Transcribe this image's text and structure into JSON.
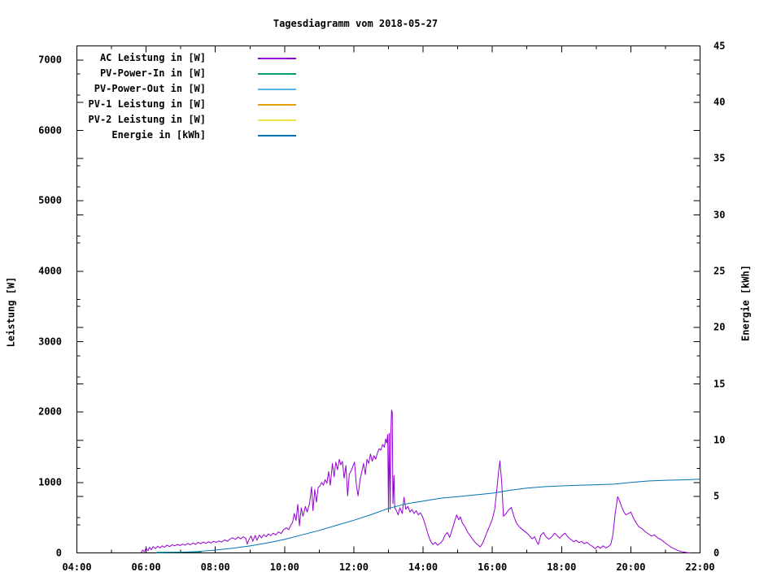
{
  "title": "Tagesdiagramm vom 2018-05-27",
  "axes": {
    "x": {
      "min": 4,
      "max": 22,
      "minor_step": 1,
      "ticks": [
        {
          "h": 4,
          "label": "04:00"
        },
        {
          "h": 6,
          "label": "06:00"
        },
        {
          "h": 8,
          "label": "08:00"
        },
        {
          "h": 10,
          "label": "10:00"
        },
        {
          "h": 12,
          "label": "12:00"
        },
        {
          "h": 14,
          "label": "14:00"
        },
        {
          "h": 16,
          "label": "16:00"
        },
        {
          "h": 18,
          "label": "18:00"
        },
        {
          "h": 20,
          "label": "20:00"
        },
        {
          "h": 22,
          "label": "22:00"
        }
      ]
    },
    "y_left": {
      "label": "Leistung [W]",
      "min": 0,
      "max": 7200,
      "minor_step": 500,
      "ticks": [
        0,
        1000,
        2000,
        3000,
        4000,
        5000,
        6000,
        7000
      ]
    },
    "y_right": {
      "label": "Energie [kWh]",
      "min": 0,
      "max": 45,
      "minor_step": 2.5,
      "ticks": [
        0,
        5,
        10,
        15,
        20,
        25,
        30,
        35,
        40,
        45
      ]
    }
  },
  "chart_data": {
    "type": "line",
    "title": "Tagesdiagramm vom 2018-05-27",
    "x_unit": "hour-of-day",
    "x_range": [
      4,
      22
    ],
    "y_left_label": "Leistung [W]",
    "y_left_range": [
      0,
      7200
    ],
    "y_right_label": "Energie [kWh]",
    "y_right_range": [
      0,
      45
    ],
    "grid": false,
    "legend_position": "top-left-inside",
    "series": [
      {
        "name": "AC Leistung in [W]",
        "color": "#9400d3",
        "axis": "left",
        "points": [
          [
            5.85,
            0
          ],
          [
            5.9,
            40
          ],
          [
            5.95,
            15
          ],
          [
            6.0,
            70
          ],
          [
            6.05,
            30
          ],
          [
            6.1,
            80
          ],
          [
            6.15,
            45
          ],
          [
            6.2,
            90
          ],
          [
            6.27,
            60
          ],
          [
            6.33,
            95
          ],
          [
            6.4,
            70
          ],
          [
            6.47,
            100
          ],
          [
            6.53,
            80
          ],
          [
            6.6,
            110
          ],
          [
            6.68,
            90
          ],
          [
            6.75,
            115
          ],
          [
            6.83,
            100
          ],
          [
            6.9,
            120
          ],
          [
            6.98,
            105
          ],
          [
            7.05,
            125
          ],
          [
            7.13,
            110
          ],
          [
            7.2,
            135
          ],
          [
            7.28,
            115
          ],
          [
            7.35,
            140
          ],
          [
            7.43,
            120
          ],
          [
            7.5,
            150
          ],
          [
            7.58,
            130
          ],
          [
            7.65,
            155
          ],
          [
            7.73,
            135
          ],
          [
            7.8,
            160
          ],
          [
            7.88,
            140
          ],
          [
            7.95,
            165
          ],
          [
            8.03,
            150
          ],
          [
            8.1,
            170
          ],
          [
            8.18,
            155
          ],
          [
            8.27,
            185
          ],
          [
            8.35,
            165
          ],
          [
            8.43,
            200
          ],
          [
            8.5,
            215
          ],
          [
            8.58,
            190
          ],
          [
            8.65,
            225
          ],
          [
            8.73,
            200
          ],
          [
            8.8,
            230
          ],
          [
            8.88,
            205
          ],
          [
            8.92,
            125
          ],
          [
            8.97,
            190
          ],
          [
            9.03,
            240
          ],
          [
            9.08,
            165
          ],
          [
            9.15,
            250
          ],
          [
            9.2,
            180
          ],
          [
            9.27,
            255
          ],
          [
            9.33,
            215
          ],
          [
            9.4,
            260
          ],
          [
            9.47,
            230
          ],
          [
            9.53,
            270
          ],
          [
            9.6,
            245
          ],
          [
            9.67,
            280
          ],
          [
            9.75,
            255
          ],
          [
            9.82,
            300
          ],
          [
            9.9,
            275
          ],
          [
            9.97,
            330
          ],
          [
            10.05,
            355
          ],
          [
            10.12,
            330
          ],
          [
            10.18,
            395
          ],
          [
            10.23,
            430
          ],
          [
            10.28,
            560
          ],
          [
            10.33,
            460
          ],
          [
            10.38,
            690
          ],
          [
            10.43,
            385
          ],
          [
            10.48,
            640
          ],
          [
            10.53,
            520
          ],
          [
            10.6,
            660
          ],
          [
            10.65,
            580
          ],
          [
            10.72,
            700
          ],
          [
            10.78,
            940
          ],
          [
            10.82,
            600
          ],
          [
            10.87,
            900
          ],
          [
            10.92,
            720
          ],
          [
            10.97,
            930
          ],
          [
            11.02,
            950
          ],
          [
            11.07,
            1000
          ],
          [
            11.12,
            960
          ],
          [
            11.17,
            1040
          ],
          [
            11.22,
            990
          ],
          [
            11.27,
            1155
          ],
          [
            11.32,
            960
          ],
          [
            11.38,
            1270
          ],
          [
            11.43,
            1080
          ],
          [
            11.48,
            1290
          ],
          [
            11.53,
            1180
          ],
          [
            11.58,
            1330
          ],
          [
            11.62,
            1250
          ],
          [
            11.67,
            1300
          ],
          [
            11.72,
            1060
          ],
          [
            11.77,
            1240
          ],
          [
            11.82,
            810
          ],
          [
            11.87,
            1120
          ],
          [
            11.92,
            1160
          ],
          [
            11.97,
            1230
          ],
          [
            12.02,
            1290
          ],
          [
            12.07,
            980
          ],
          [
            12.12,
            810
          ],
          [
            12.18,
            1040
          ],
          [
            12.23,
            1150
          ],
          [
            12.28,
            1270
          ],
          [
            12.33,
            1115
          ],
          [
            12.38,
            1330
          ],
          [
            12.43,
            1270
          ],
          [
            12.48,
            1404
          ],
          [
            12.53,
            1300
          ],
          [
            12.58,
            1380
          ],
          [
            12.63,
            1330
          ],
          [
            12.68,
            1420
          ],
          [
            12.73,
            1480
          ],
          [
            12.78,
            1460
          ],
          [
            12.83,
            1540
          ],
          [
            12.88,
            1500
          ],
          [
            12.92,
            1620
          ],
          [
            12.95,
            1560
          ],
          [
            12.98,
            1680
          ],
          [
            13.0,
            580
          ],
          [
            13.02,
            1700
          ],
          [
            13.05,
            620
          ],
          [
            13.07,
            1730
          ],
          [
            13.09,
            2030
          ],
          [
            13.11,
            1990
          ],
          [
            13.13,
            700
          ],
          [
            13.16,
            1100
          ],
          [
            13.18,
            640
          ],
          [
            13.23,
            600
          ],
          [
            13.28,
            540
          ],
          [
            13.33,
            640
          ],
          [
            13.4,
            560
          ],
          [
            13.45,
            790
          ],
          [
            13.5,
            620
          ],
          [
            13.56,
            660
          ],
          [
            13.62,
            580
          ],
          [
            13.68,
            615
          ],
          [
            13.74,
            560
          ],
          [
            13.8,
            600
          ],
          [
            13.86,
            540
          ],
          [
            13.92,
            570
          ],
          [
            13.98,
            520
          ],
          [
            14.05,
            420
          ],
          [
            14.12,
            300
          ],
          [
            14.2,
            180
          ],
          [
            14.28,
            120
          ],
          [
            14.35,
            150
          ],
          [
            14.42,
            110
          ],
          [
            14.5,
            140
          ],
          [
            14.57,
            180
          ],
          [
            14.63,
            250
          ],
          [
            14.7,
            290
          ],
          [
            14.77,
            220
          ],
          [
            14.83,
            320
          ],
          [
            14.9,
            430
          ],
          [
            14.97,
            540
          ],
          [
            15.03,
            470
          ],
          [
            15.08,
            510
          ],
          [
            15.13,
            430
          ],
          [
            15.2,
            380
          ],
          [
            15.28,
            300
          ],
          [
            15.35,
            250
          ],
          [
            15.43,
            195
          ],
          [
            15.5,
            150
          ],
          [
            15.58,
            115
          ],
          [
            15.65,
            85
          ],
          [
            15.72,
            140
          ],
          [
            15.78,
            210
          ],
          [
            15.85,
            300
          ],
          [
            15.92,
            380
          ],
          [
            16.0,
            480
          ],
          [
            16.07,
            620
          ],
          [
            16.13,
            900
          ],
          [
            16.18,
            1150
          ],
          [
            16.22,
            1305
          ],
          [
            16.27,
            1000
          ],
          [
            16.32,
            520
          ],
          [
            16.4,
            560
          ],
          [
            16.47,
            610
          ],
          [
            16.55,
            645
          ],
          [
            16.62,
            520
          ],
          [
            16.7,
            420
          ],
          [
            16.8,
            360
          ],
          [
            16.9,
            320
          ],
          [
            17.0,
            280
          ],
          [
            17.08,
            240
          ],
          [
            17.15,
            200
          ],
          [
            17.22,
            230
          ],
          [
            17.28,
            160
          ],
          [
            17.33,
            120
          ],
          [
            17.4,
            250
          ],
          [
            17.48,
            290
          ],
          [
            17.55,
            230
          ],
          [
            17.63,
            195
          ],
          [
            17.72,
            230
          ],
          [
            17.8,
            280
          ],
          [
            17.88,
            240
          ],
          [
            17.95,
            210
          ],
          [
            18.02,
            250
          ],
          [
            18.1,
            280
          ],
          [
            18.18,
            230
          ],
          [
            18.27,
            190
          ],
          [
            18.35,
            160
          ],
          [
            18.42,
            180
          ],
          [
            18.5,
            145
          ],
          [
            18.58,
            165
          ],
          [
            18.65,
            130
          ],
          [
            18.73,
            150
          ],
          [
            18.82,
            115
          ],
          [
            18.9,
            90
          ],
          [
            18.97,
            60
          ],
          [
            19.05,
            95
          ],
          [
            19.12,
            65
          ],
          [
            19.2,
            100
          ],
          [
            19.28,
            70
          ],
          [
            19.35,
            90
          ],
          [
            19.42,
            120
          ],
          [
            19.48,
            250
          ],
          [
            19.55,
            560
          ],
          [
            19.62,
            800
          ],
          [
            19.68,
            730
          ],
          [
            19.74,
            650
          ],
          [
            19.8,
            580
          ],
          [
            19.86,
            540
          ],
          [
            19.93,
            560
          ],
          [
            20.0,
            580
          ],
          [
            20.07,
            500
          ],
          [
            20.15,
            430
          ],
          [
            20.23,
            370
          ],
          [
            20.32,
            345
          ],
          [
            20.42,
            300
          ],
          [
            20.52,
            265
          ],
          [
            20.6,
            240
          ],
          [
            20.68,
            255
          ],
          [
            20.77,
            215
          ],
          [
            20.87,
            190
          ],
          [
            20.97,
            150
          ],
          [
            21.07,
            115
          ],
          [
            21.17,
            80
          ],
          [
            21.27,
            55
          ],
          [
            21.38,
            30
          ],
          [
            21.5,
            15
          ],
          [
            21.62,
            5
          ],
          [
            21.72,
            0
          ]
        ]
      },
      {
        "name": "PV-Power-In in [W]",
        "color": "#009e73",
        "axis": "left",
        "points": [
          [
            6.3,
            10
          ],
          [
            7.6,
            10
          ]
        ]
      },
      {
        "name": "PV-Power-Out in [W]",
        "color": "#56b4e9",
        "axis": "left",
        "points": []
      },
      {
        "name": "PV-1 Leistung in [W]",
        "color": "#e69f00",
        "axis": "left",
        "points": []
      },
      {
        "name": "PV-2 Leistung in [W]",
        "color": "#f0e442",
        "axis": "left",
        "points": []
      },
      {
        "name": "Energie in [kWh]",
        "color": "#0072b2",
        "axis": "right",
        "points": [
          [
            6.3,
            0.0
          ],
          [
            7.0,
            0.05
          ],
          [
            7.5,
            0.12
          ],
          [
            8.0,
            0.25
          ],
          [
            8.5,
            0.42
          ],
          [
            9.0,
            0.62
          ],
          [
            9.5,
            0.88
          ],
          [
            10.0,
            1.2
          ],
          [
            10.5,
            1.6
          ],
          [
            11.0,
            2.0
          ],
          [
            11.5,
            2.45
          ],
          [
            12.0,
            2.9
          ],
          [
            12.5,
            3.4
          ],
          [
            13.0,
            3.95
          ],
          [
            13.5,
            4.35
          ],
          [
            14.0,
            4.6
          ],
          [
            14.5,
            4.85
          ],
          [
            15.0,
            5.0
          ],
          [
            15.5,
            5.15
          ],
          [
            16.0,
            5.3
          ],
          [
            16.5,
            5.55
          ],
          [
            17.0,
            5.75
          ],
          [
            17.5,
            5.88
          ],
          [
            18.0,
            5.95
          ],
          [
            18.5,
            6.0
          ],
          [
            19.0,
            6.05
          ],
          [
            19.5,
            6.1
          ],
          [
            20.0,
            6.25
          ],
          [
            20.5,
            6.38
          ],
          [
            21.0,
            6.45
          ],
          [
            21.5,
            6.48
          ],
          [
            22.0,
            6.55
          ]
        ]
      }
    ]
  }
}
